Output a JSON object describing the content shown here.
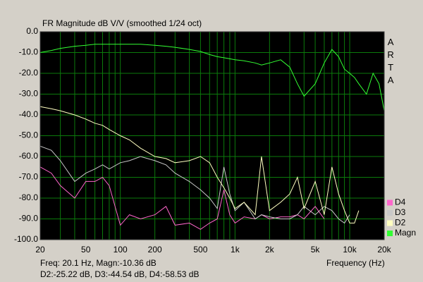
{
  "chart_data": {
    "type": "line",
    "title": "FR Magnitude dB V/V (smoothed 1/24 oct)",
    "brand": "ARTA",
    "xlabel": "Frequency (Hz)",
    "readout": [
      "Freq: 20.1 Hz, Magn:-10.36 dB",
      "D2:-25.22 dB, D3:-44.54 dB, D4:-58.53 dB"
    ],
    "xscale": "log",
    "grid": true,
    "legend": "lower right",
    "background": "#000000",
    "grid_color": "#0b7a0b",
    "xlim": [
      20,
      20000
    ],
    "ylim": [
      -100,
      0
    ],
    "xticks": [
      20,
      50,
      100,
      200,
      500,
      {
        "value": 1000,
        "label": "1k"
      },
      {
        "value": 2000,
        "label": "2k"
      },
      {
        "value": 5000,
        "label": "5k"
      },
      {
        "value": 10000,
        "label": "10k"
      },
      {
        "value": 20000,
        "label": "20k"
      }
    ],
    "xminor": [
      30,
      40,
      60,
      70,
      80,
      90,
      300,
      400,
      600,
      700,
      800,
      900,
      3000,
      4000,
      6000,
      7000,
      8000,
      9000
    ],
    "yticks": [
      {
        "value": 0,
        "label": "0.0"
      },
      {
        "value": -10,
        "label": "-10.0"
      },
      {
        "value": -20,
        "label": "-20.0"
      },
      {
        "value": -30,
        "label": "-30.0"
      },
      {
        "value": -40,
        "label": "-40.0"
      },
      {
        "value": -50,
        "label": "-50.0"
      },
      {
        "value": -60,
        "label": "-60.0"
      },
      {
        "value": -70,
        "label": "-70.0"
      },
      {
        "value": -80,
        "label": "-80.0"
      },
      {
        "value": -90,
        "label": "-90.0"
      },
      {
        "value": -100,
        "label": "-100.0"
      }
    ],
    "x": [
      20,
      25,
      30,
      40,
      50,
      60,
      70,
      80,
      100,
      120,
      150,
      200,
      250,
      300,
      400,
      500,
      600,
      700,
      800,
      900,
      1000,
      1200,
      1500,
      1700,
      2000,
      2500,
      3000,
      3500,
      4000,
      5000,
      6000,
      7000,
      8000,
      9000,
      10000,
      11000,
      12000,
      14000,
      16000,
      18000,
      20000
    ],
    "series": [
      {
        "name": "Magn",
        "color": "#33ff33",
        "values": [
          -10,
          -9,
          -8,
          -7,
          -6.5,
          -6,
          -6,
          -6,
          -6,
          -6,
          -6,
          -6.5,
          -7,
          -7.5,
          -8.5,
          -9.5,
          -11,
          -12,
          -12.5,
          -13,
          -13.5,
          -14,
          -15,
          -16,
          -15,
          -13.5,
          -17,
          -25,
          -31,
          -25,
          -15,
          -8.5,
          -12,
          -18,
          -20,
          -22,
          -25,
          -30,
          -20,
          -25,
          -38
        ]
      },
      {
        "name": "D2",
        "color": "#ffffc0",
        "values": [
          -36,
          -37,
          -38,
          -40,
          -42,
          -44,
          -45,
          -47,
          -50,
          -52,
          -56,
          -60,
          -61,
          -63,
          -62,
          -60,
          -63,
          -70,
          -75,
          -80,
          -85,
          -82,
          -88,
          -60,
          -86,
          -82,
          -78,
          -70,
          -85,
          -72,
          -88,
          -65,
          -78,
          -86,
          -92,
          -92,
          -86,
          null,
          null,
          null,
          null
        ]
      },
      {
        "name": "D3",
        "color": "#c8c8c8",
        "values": [
          -55,
          -57,
          -62,
          -72,
          -68,
          -66,
          -64,
          -66,
          -63,
          -62,
          -60,
          -62,
          -64,
          -68,
          -72,
          -76,
          -80,
          -85,
          -65,
          -78,
          -86,
          -82,
          -90,
          -88,
          -89,
          -90,
          -90,
          -88,
          -84,
          -88,
          -84,
          -86,
          -90,
          -92,
          -88,
          null,
          null,
          null,
          null,
          null,
          null
        ]
      },
      {
        "name": "D4",
        "color": "#ff66cc",
        "values": [
          -65,
          -68,
          -74,
          -80,
          -72,
          -72,
          -70,
          -74,
          -93,
          -88,
          -90,
          -88,
          -84,
          -93,
          -92,
          -95,
          -92,
          -90,
          -76,
          -88,
          -92,
          -89,
          -90,
          -88,
          -90,
          -89,
          -89,
          -88,
          -90,
          -84,
          -90,
          null,
          null,
          null,
          null,
          null,
          null,
          null,
          null,
          null,
          null
        ]
      }
    ]
  }
}
